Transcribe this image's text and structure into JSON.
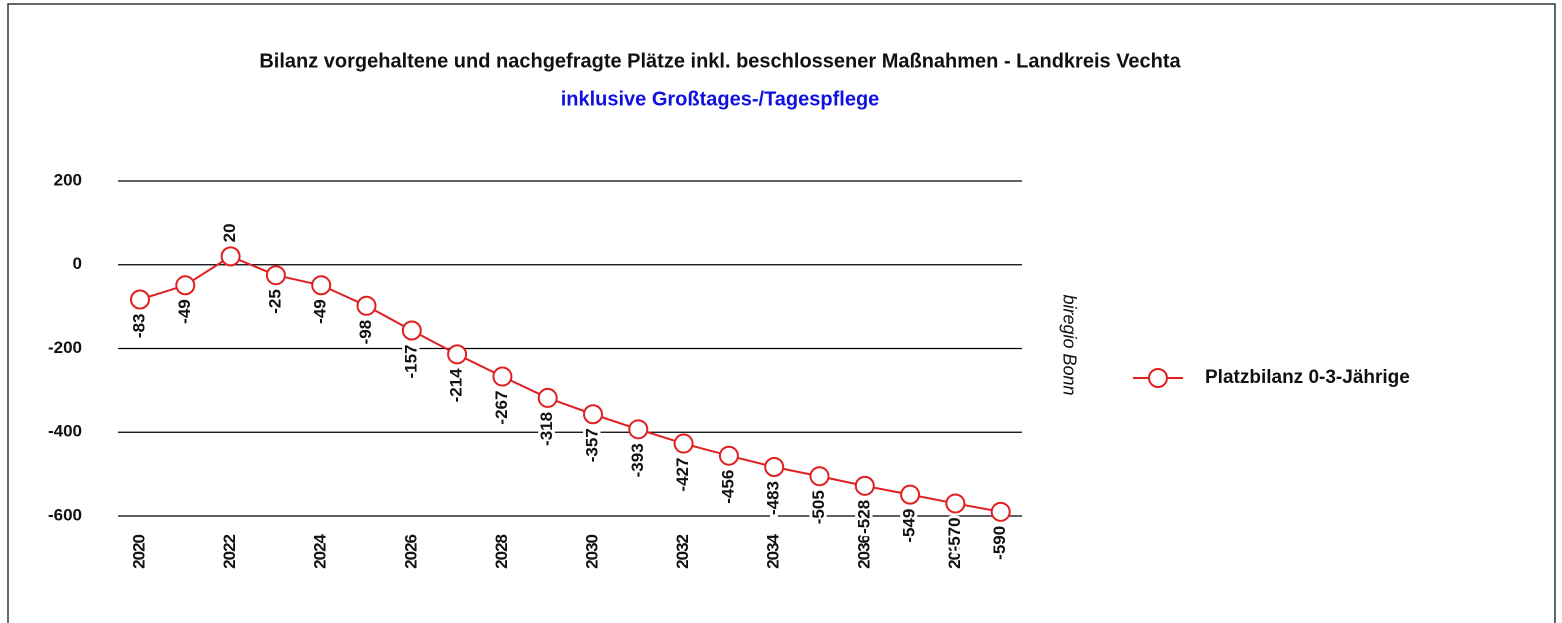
{
  "chart_data": {
    "type": "line",
    "title": "Bilanz vorgehaltene und nachgefragte Plätze inkl. beschlossener Maßnahmen - Landkreis Vechta",
    "subtitle": "inklusive Großtages-/Tagespflege",
    "source": "biregio Bonn",
    "categories": [
      "2020",
      null,
      "2022",
      null,
      "2024",
      null,
      "2026",
      null,
      "2028",
      null,
      "2030",
      null,
      "2032",
      null,
      "2034",
      null,
      "2036",
      null,
      "2038",
      null
    ],
    "series": [
      {
        "name": "Platzbilanz 0-3-Jährige",
        "color": "#e02020",
        "values": [
          -83,
          -49,
          20,
          -25,
          -49,
          -98,
          -157,
          -214,
          -267,
          -318,
          -357,
          -393,
          -427,
          -456,
          -483,
          -505,
          -528,
          -549,
          -570,
          -590
        ]
      }
    ],
    "ylim": [
      -600,
      200
    ],
    "yticks": [
      -600,
      -400,
      -200,
      0,
      200
    ],
    "grid": true,
    "legend": "right"
  }
}
